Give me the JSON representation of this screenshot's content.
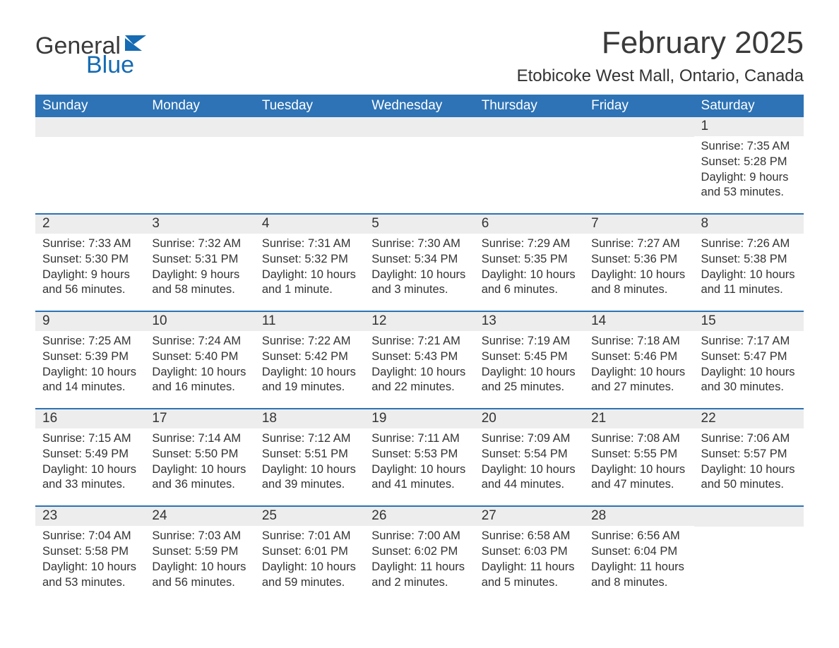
{
  "logo": {
    "text_general": "General",
    "text_blue": "Blue",
    "accent_color": "#166bb3"
  },
  "header": {
    "month_title": "February 2025",
    "location": "Etobicoke West Mall, Ontario, Canada"
  },
  "colors": {
    "header_bg": "#2d73b6",
    "header_text": "#ffffff",
    "daynum_bg": "#ededed",
    "body_text": "#333333",
    "divider": "#2d73b6",
    "page_bg": "#ffffff"
  },
  "day_names": [
    "Sunday",
    "Monday",
    "Tuesday",
    "Wednesday",
    "Thursday",
    "Friday",
    "Saturday"
  ],
  "label_prefix": {
    "sunrise": "Sunrise: ",
    "sunset": "Sunset: ",
    "daylight": "Daylight: "
  },
  "weeks": [
    [
      {
        "empty": true
      },
      {
        "empty": true
      },
      {
        "empty": true
      },
      {
        "empty": true
      },
      {
        "empty": true
      },
      {
        "empty": true
      },
      {
        "day": 1,
        "sunrise": "7:35 AM",
        "sunset": "5:28 PM",
        "daylight": "9 hours and 53 minutes."
      }
    ],
    [
      {
        "day": 2,
        "sunrise": "7:33 AM",
        "sunset": "5:30 PM",
        "daylight": "9 hours and 56 minutes."
      },
      {
        "day": 3,
        "sunrise": "7:32 AM",
        "sunset": "5:31 PM",
        "daylight": "9 hours and 58 minutes."
      },
      {
        "day": 4,
        "sunrise": "7:31 AM",
        "sunset": "5:32 PM",
        "daylight": "10 hours and 1 minute."
      },
      {
        "day": 5,
        "sunrise": "7:30 AM",
        "sunset": "5:34 PM",
        "daylight": "10 hours and 3 minutes."
      },
      {
        "day": 6,
        "sunrise": "7:29 AM",
        "sunset": "5:35 PM",
        "daylight": "10 hours and 6 minutes."
      },
      {
        "day": 7,
        "sunrise": "7:27 AM",
        "sunset": "5:36 PM",
        "daylight": "10 hours and 8 minutes."
      },
      {
        "day": 8,
        "sunrise": "7:26 AM",
        "sunset": "5:38 PM",
        "daylight": "10 hours and 11 minutes."
      }
    ],
    [
      {
        "day": 9,
        "sunrise": "7:25 AM",
        "sunset": "5:39 PM",
        "daylight": "10 hours and 14 minutes."
      },
      {
        "day": 10,
        "sunrise": "7:24 AM",
        "sunset": "5:40 PM",
        "daylight": "10 hours and 16 minutes."
      },
      {
        "day": 11,
        "sunrise": "7:22 AM",
        "sunset": "5:42 PM",
        "daylight": "10 hours and 19 minutes."
      },
      {
        "day": 12,
        "sunrise": "7:21 AM",
        "sunset": "5:43 PM",
        "daylight": "10 hours and 22 minutes."
      },
      {
        "day": 13,
        "sunrise": "7:19 AM",
        "sunset": "5:45 PM",
        "daylight": "10 hours and 25 minutes."
      },
      {
        "day": 14,
        "sunrise": "7:18 AM",
        "sunset": "5:46 PM",
        "daylight": "10 hours and 27 minutes."
      },
      {
        "day": 15,
        "sunrise": "7:17 AM",
        "sunset": "5:47 PM",
        "daylight": "10 hours and 30 minutes."
      }
    ],
    [
      {
        "day": 16,
        "sunrise": "7:15 AM",
        "sunset": "5:49 PM",
        "daylight": "10 hours and 33 minutes."
      },
      {
        "day": 17,
        "sunrise": "7:14 AM",
        "sunset": "5:50 PM",
        "daylight": "10 hours and 36 minutes."
      },
      {
        "day": 18,
        "sunrise": "7:12 AM",
        "sunset": "5:51 PM",
        "daylight": "10 hours and 39 minutes."
      },
      {
        "day": 19,
        "sunrise": "7:11 AM",
        "sunset": "5:53 PM",
        "daylight": "10 hours and 41 minutes."
      },
      {
        "day": 20,
        "sunrise": "7:09 AM",
        "sunset": "5:54 PM",
        "daylight": "10 hours and 44 minutes."
      },
      {
        "day": 21,
        "sunrise": "7:08 AM",
        "sunset": "5:55 PM",
        "daylight": "10 hours and 47 minutes."
      },
      {
        "day": 22,
        "sunrise": "7:06 AM",
        "sunset": "5:57 PM",
        "daylight": "10 hours and 50 minutes."
      }
    ],
    [
      {
        "day": 23,
        "sunrise": "7:04 AM",
        "sunset": "5:58 PM",
        "daylight": "10 hours and 53 minutes."
      },
      {
        "day": 24,
        "sunrise": "7:03 AM",
        "sunset": "5:59 PM",
        "daylight": "10 hours and 56 minutes."
      },
      {
        "day": 25,
        "sunrise": "7:01 AM",
        "sunset": "6:01 PM",
        "daylight": "10 hours and 59 minutes."
      },
      {
        "day": 26,
        "sunrise": "7:00 AM",
        "sunset": "6:02 PM",
        "daylight": "11 hours and 2 minutes."
      },
      {
        "day": 27,
        "sunrise": "6:58 AM",
        "sunset": "6:03 PM",
        "daylight": "11 hours and 5 minutes."
      },
      {
        "day": 28,
        "sunrise": "6:56 AM",
        "sunset": "6:04 PM",
        "daylight": "11 hours and 8 minutes."
      },
      {
        "empty": true
      }
    ]
  ]
}
